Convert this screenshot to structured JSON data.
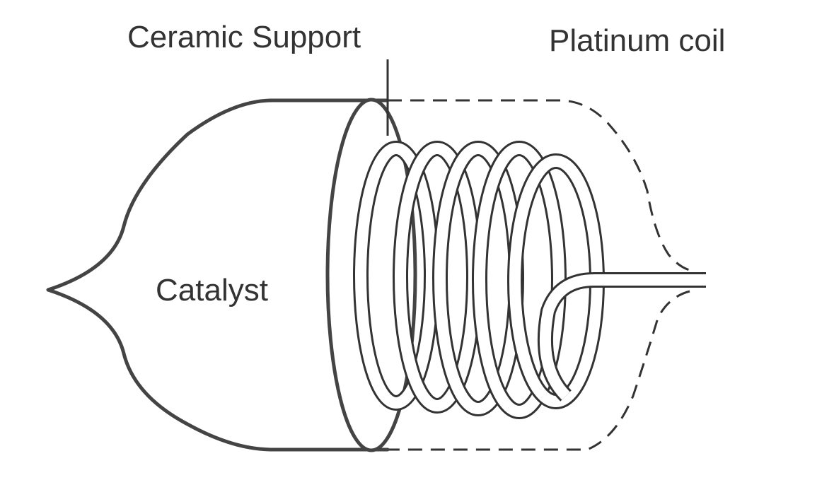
{
  "labels": {
    "ceramic_support": "Ceramic Support",
    "platinum_coil": "Platinum coil",
    "catalyst": "Catalyst"
  }
}
